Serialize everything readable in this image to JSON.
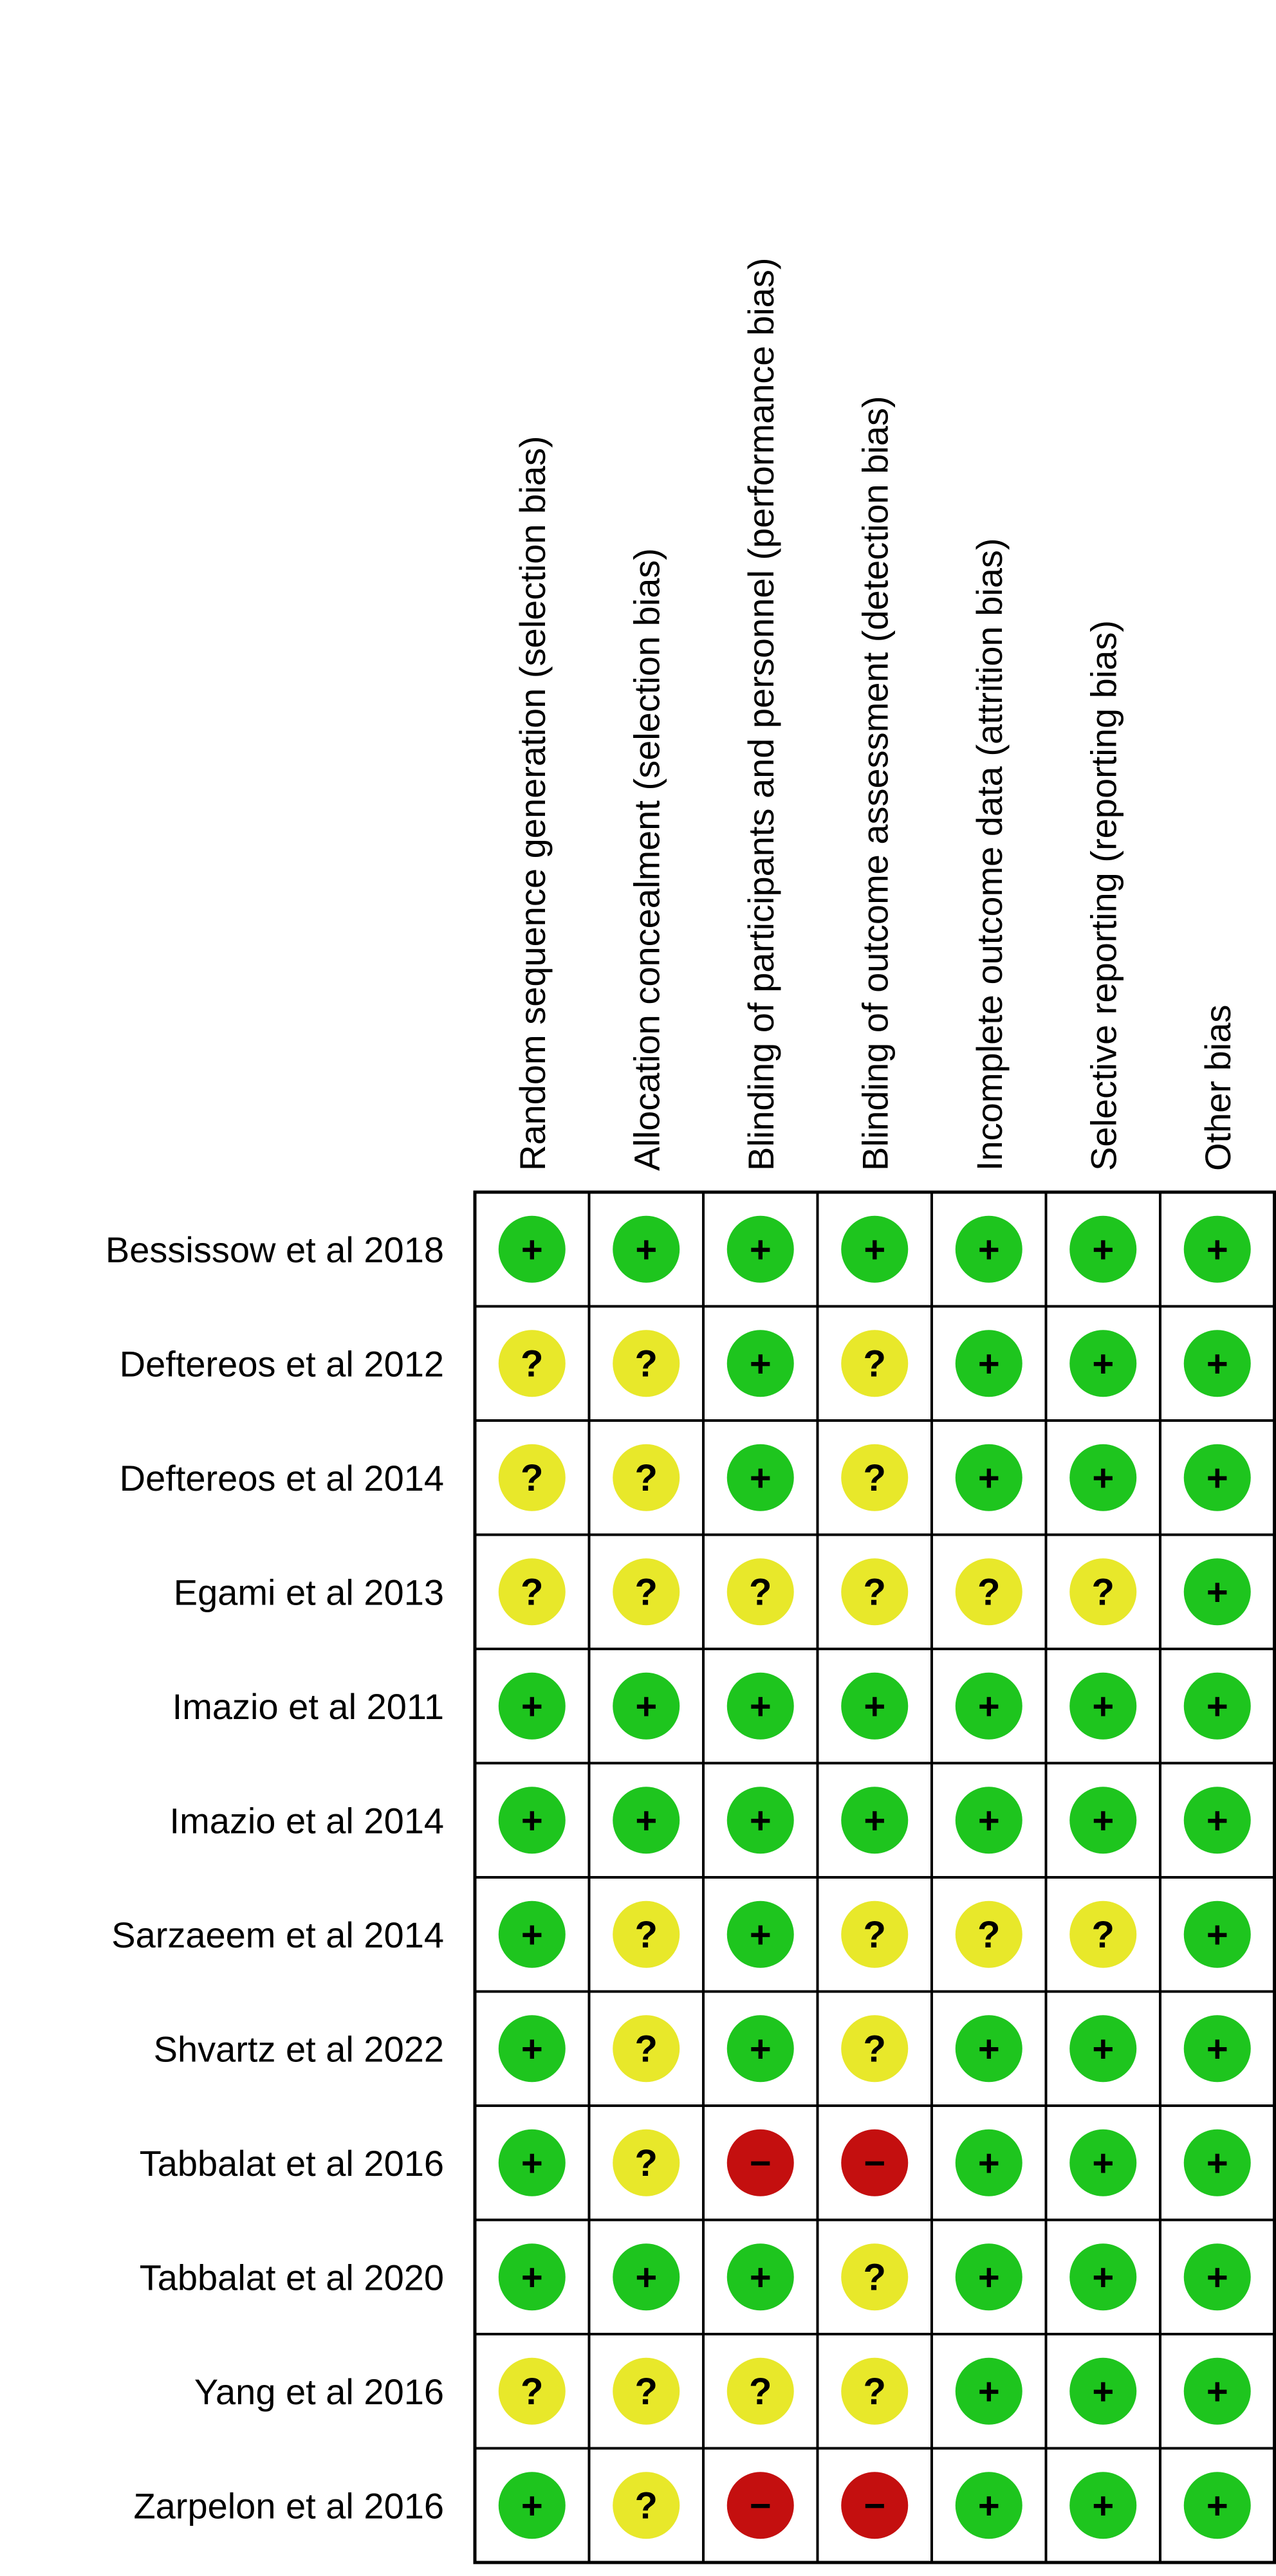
{
  "chart_data": {
    "type": "table",
    "columns": [
      "Random sequence generation (selection bias)",
      "Allocation concealment (selection bias)",
      "Blinding of participants and personnel (performance bias)",
      "Blinding of outcome assessment (detection bias)",
      "Incomplete outcome data (attrition bias)",
      "Selective reporting (reporting bias)",
      "Other bias"
    ],
    "rows": [
      {
        "study": "Bessissow et al 2018",
        "ratings": [
          "+",
          "+",
          "+",
          "+",
          "+",
          "+",
          "+"
        ]
      },
      {
        "study": "Deftereos et al 2012",
        "ratings": [
          "?",
          "?",
          "+",
          "?",
          "+",
          "+",
          "+"
        ]
      },
      {
        "study": "Deftereos et al 2014",
        "ratings": [
          "?",
          "?",
          "+",
          "?",
          "+",
          "+",
          "+"
        ]
      },
      {
        "study": "Egami et al 2013",
        "ratings": [
          "?",
          "?",
          "?",
          "?",
          "?",
          "?",
          "+"
        ]
      },
      {
        "study": "Imazio et al 2011",
        "ratings": [
          "+",
          "+",
          "+",
          "+",
          "+",
          "+",
          "+"
        ]
      },
      {
        "study": "Imazio et al 2014",
        "ratings": [
          "+",
          "+",
          "+",
          "+",
          "+",
          "+",
          "+"
        ]
      },
      {
        "study": "Sarzaeem et al 2014",
        "ratings": [
          "+",
          "?",
          "+",
          "?",
          "?",
          "?",
          "+"
        ]
      },
      {
        "study": "Shvartz et al 2022",
        "ratings": [
          "+",
          "?",
          "+",
          "?",
          "+",
          "+",
          "+"
        ]
      },
      {
        "study": "Tabbalat et al 2016",
        "ratings": [
          "+",
          "?",
          "-",
          "-",
          "+",
          "+",
          "+"
        ]
      },
      {
        "study": "Tabbalat et al 2020",
        "ratings": [
          "+",
          "+",
          "+",
          "?",
          "+",
          "+",
          "+"
        ]
      },
      {
        "study": "Yang et al 2016",
        "ratings": [
          "?",
          "?",
          "?",
          "?",
          "+",
          "+",
          "+"
        ]
      },
      {
        "study": "Zarpelon et al 2016",
        "ratings": [
          "+",
          "?",
          "-",
          "-",
          "+",
          "+",
          "+"
        ]
      }
    ],
    "rating_styles": {
      "+": {
        "meaning": "low-risk",
        "fill": "#1ec51e",
        "glyph": "+"
      },
      "?": {
        "meaning": "unclear-risk",
        "fill": "#e8e82a",
        "glyph": "?"
      },
      "-": {
        "meaning": "high-risk",
        "fill": "#c40f0f",
        "glyph": "−"
      }
    }
  }
}
